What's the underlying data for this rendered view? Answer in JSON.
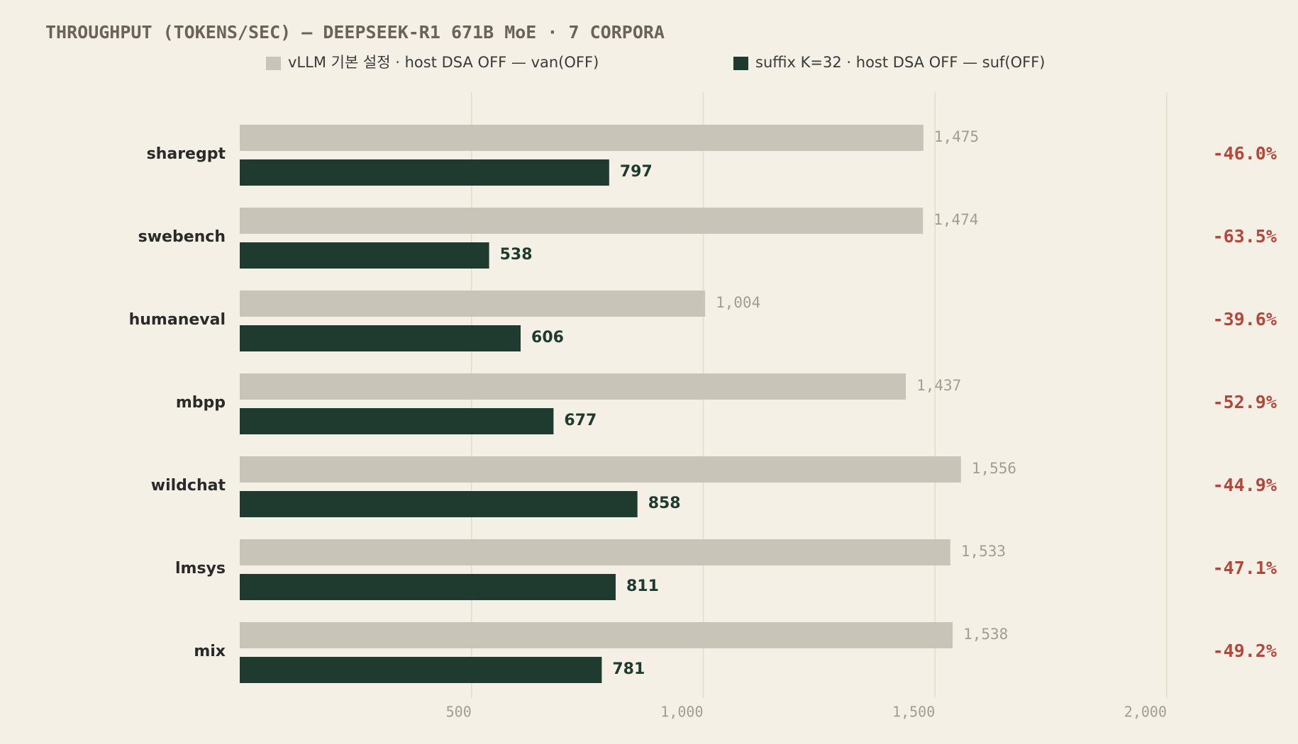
{
  "chart_data": {
    "type": "hbar",
    "title": "THROUGHPUT (TOKENS/SEC) — DEEPSEEK-R1 671B MoE · 7 CORPORA",
    "categories": [
      "sharegpt",
      "swebench",
      "humaneval",
      "mbpp",
      "wildchat",
      "lmsys",
      "mix"
    ],
    "series": [
      {
        "name": "vLLM 기본 설정 · host DSA OFF — van(OFF)",
        "color": "#c9c4b8",
        "values": [
          1475,
          1474,
          1004,
          1437,
          1556,
          1533,
          1538
        ],
        "value_labels": [
          "1,475",
          "1,474",
          "1,004",
          "1,437",
          "1,556",
          "1,533",
          "1,538"
        ]
      },
      {
        "name": "suffix K=32 · host DSA OFF — suf(OFF)",
        "color": "#1f3a2f",
        "values": [
          797,
          538,
          606,
          677,
          858,
          811,
          781
        ]
      }
    ],
    "annotations": [
      "-46.0%",
      "-63.5%",
      "-39.6%",
      "-52.9%",
      "-44.9%",
      "-47.1%",
      "-49.2%"
    ],
    "annotation_color": "#b5473a",
    "xlim": [
      0,
      2000
    ],
    "xticks": [
      {
        "value": 500,
        "label": "500"
      },
      {
        "value": 1000,
        "label": "1,000"
      },
      {
        "value": 1500,
        "label": "1,500"
      },
      {
        "value": 2000,
        "label": "2,000"
      }
    ],
    "grid": true
  }
}
